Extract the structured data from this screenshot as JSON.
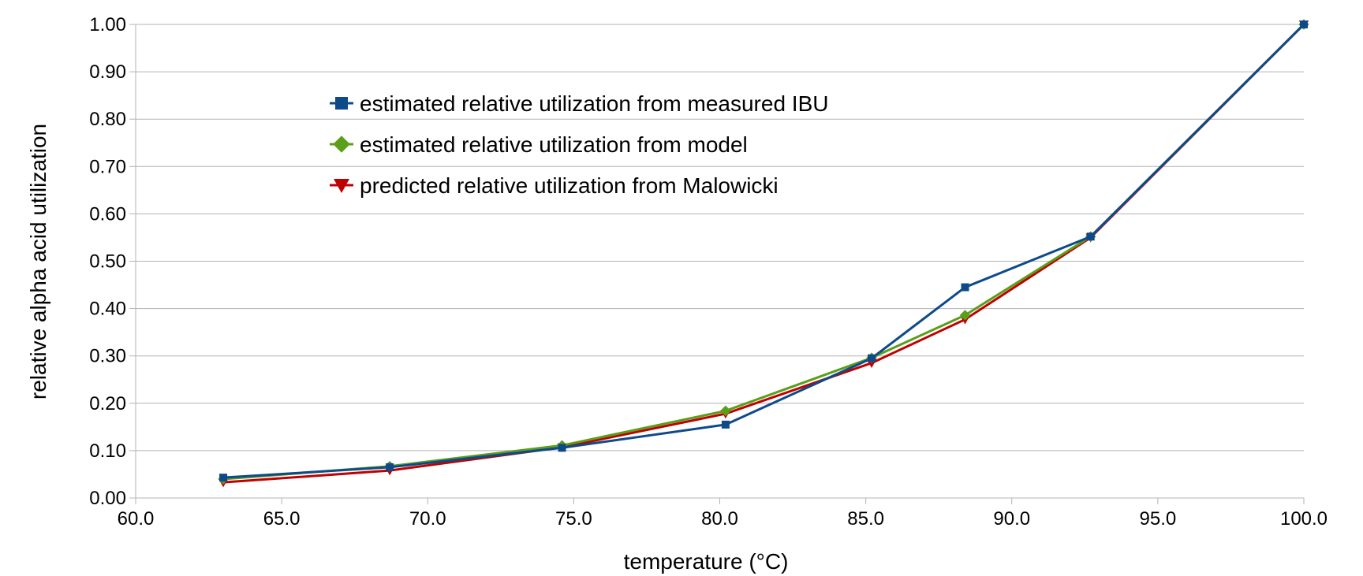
{
  "chart_data": {
    "type": "line",
    "title": "",
    "xlabel": "temperature (°C)",
    "ylabel": "relative alpha acid utilization",
    "xlim": [
      60,
      100
    ],
    "ylim": [
      0,
      1
    ],
    "xticks": [
      "60.0",
      "65.0",
      "70.0",
      "75.0",
      "80.0",
      "85.0",
      "90.0",
      "95.0",
      "100.0"
    ],
    "yticks": [
      "0.00",
      "0.10",
      "0.20",
      "0.30",
      "0.40",
      "0.50",
      "0.60",
      "0.70",
      "0.80",
      "0.90",
      "1.00"
    ],
    "grid": "horizontal",
    "legend_placement": "top-left",
    "series": [
      {
        "name": "estimated relative utilization from measured IBU",
        "color": "#0e4a8a",
        "marker": "square",
        "x": [
          63.0,
          68.7,
          74.6,
          80.2,
          85.2,
          88.4,
          92.7,
          100.0
        ],
        "y": [
          0.043,
          0.065,
          0.106,
          0.155,
          0.295,
          0.445,
          0.552,
          1.0
        ]
      },
      {
        "name": "estimated relative utilization from model",
        "color": "#5a9e1a",
        "marker": "diamond",
        "x": [
          63.0,
          68.7,
          74.6,
          80.2,
          85.2,
          88.4,
          92.7,
          100.0
        ],
        "y": [
          0.04,
          0.067,
          0.111,
          0.184,
          0.296,
          0.386,
          0.552,
          1.0
        ]
      },
      {
        "name": "predicted relative utilization from Malowicki",
        "color": "#c00000",
        "marker": "triangle-down",
        "x": [
          63.0,
          68.7,
          74.6,
          80.2,
          85.2,
          88.4,
          92.7,
          100.0
        ],
        "y": [
          0.033,
          0.058,
          0.107,
          0.178,
          0.285,
          0.377,
          0.55,
          1.0
        ]
      }
    ]
  }
}
